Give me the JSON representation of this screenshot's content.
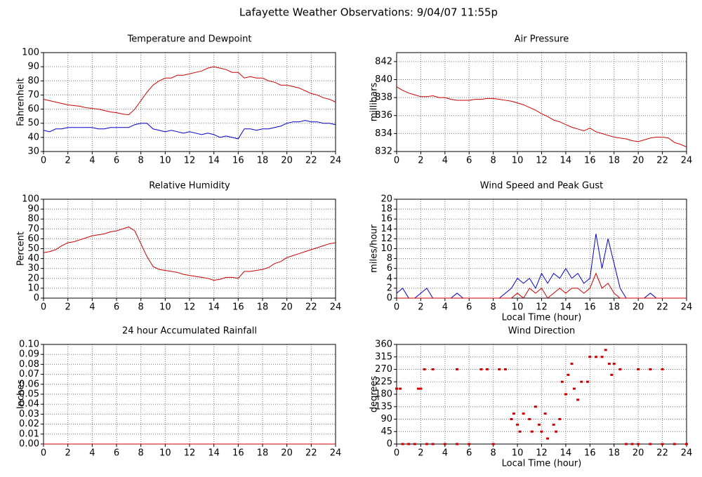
{
  "title": "Lafayette Weather Observations: 9/04/07 11:55p",
  "chart_data": [
    {
      "type": "line",
      "title": "Temperature and Dewpoint",
      "ylabel": "Fahrenheit",
      "x": [
        0,
        0.5,
        1,
        1.5,
        2,
        2.5,
        3,
        3.5,
        4,
        4.5,
        5,
        5.5,
        6,
        6.5,
        7,
        7.5,
        8,
        8.5,
        9,
        9.5,
        10,
        10.5,
        11,
        11.5,
        12,
        12.5,
        13,
        13.5,
        14,
        14.5,
        15,
        15.5,
        16,
        16.5,
        17,
        17.5,
        18,
        18.5,
        19,
        19.5,
        20,
        20.5,
        21,
        21.5,
        22,
        22.5,
        23,
        23.5,
        24
      ],
      "series": [
        {
          "color": "#cc0000",
          "values": [
            67,
            66,
            65,
            64,
            63,
            62.5,
            62,
            61,
            60.5,
            60,
            59,
            58,
            57.5,
            56.5,
            56,
            60,
            66,
            72,
            77,
            80,
            82,
            82,
            84,
            84,
            85,
            86,
            87,
            89,
            90,
            89,
            88,
            86,
            86,
            82,
            83,
            82,
            82,
            80,
            79,
            77,
            77,
            76,
            75,
            73,
            71,
            70,
            68,
            67,
            65
          ]
        },
        {
          "color": "#0000cc",
          "values": [
            45,
            44,
            46,
            46,
            47,
            47,
            47,
            47,
            47,
            46,
            46,
            47,
            47,
            47,
            47,
            49,
            50,
            50,
            46,
            45,
            44,
            45,
            44,
            43,
            44,
            43,
            42,
            43,
            42,
            40,
            41,
            40,
            39,
            46,
            46,
            45,
            46,
            46,
            47,
            48,
            50,
            51,
            51,
            52,
            51,
            51,
            50,
            50,
            49
          ]
        }
      ],
      "xlim": [
        0,
        24
      ],
      "xticks": [
        0,
        2,
        4,
        6,
        8,
        10,
        12,
        14,
        16,
        18,
        20,
        22,
        24
      ],
      "ylim": [
        30,
        100
      ],
      "yticks": [
        30,
        40,
        50,
        60,
        70,
        80,
        90,
        100
      ],
      "grid": true
    },
    {
      "type": "line",
      "title": "Air Pressure",
      "ylabel": "millibars",
      "x": [
        0,
        0.5,
        1,
        1.5,
        2,
        2.5,
        3,
        3.5,
        4,
        4.5,
        5,
        5.5,
        6,
        6.5,
        7,
        7.5,
        8,
        8.5,
        9,
        9.5,
        10,
        10.5,
        11,
        11.5,
        12,
        12.5,
        13,
        13.5,
        14,
        14.5,
        15,
        15.5,
        16,
        16.5,
        17,
        17.5,
        18,
        18.5,
        19,
        19.5,
        20,
        20.5,
        21,
        21.5,
        22,
        22.5,
        23,
        23.5,
        24
      ],
      "series": [
        {
          "color": "#cc0000",
          "values": [
            839.2,
            838.8,
            838.5,
            838.3,
            838.1,
            838.1,
            838.2,
            838,
            838,
            837.8,
            837.7,
            837.7,
            837.7,
            837.8,
            837.8,
            837.9,
            837.9,
            837.8,
            837.7,
            837.6,
            837.4,
            837.2,
            836.9,
            836.6,
            836.2,
            835.9,
            835.5,
            835.3,
            835,
            834.7,
            834.5,
            834.3,
            834.6,
            834.2,
            834,
            833.8,
            833.6,
            833.5,
            833.4,
            833.2,
            833.1,
            833.3,
            833.5,
            833.6,
            833.6,
            833.5,
            833,
            832.8,
            832.5
          ]
        }
      ],
      "xlim": [
        0,
        24
      ],
      "xticks": [
        0,
        2,
        4,
        6,
        8,
        10,
        12,
        14,
        16,
        18,
        20,
        22,
        24
      ],
      "ylim": [
        832,
        843
      ],
      "yticks": [
        832,
        834,
        836,
        838,
        840,
        842
      ],
      "grid": true
    },
    {
      "type": "line",
      "title": "Relative Humidity",
      "ylabel": "Percent",
      "x": [
        0,
        0.5,
        1,
        1.5,
        2,
        2.5,
        3,
        3.5,
        4,
        4.5,
        5,
        5.5,
        6,
        6.5,
        7,
        7.5,
        8,
        8.5,
        9,
        9.5,
        10,
        10.5,
        11,
        11.5,
        12,
        12.5,
        13,
        13.5,
        14,
        14.5,
        15,
        15.5,
        16,
        16.5,
        17,
        17.5,
        18,
        18.5,
        19,
        19.5,
        20,
        20.5,
        21,
        21.5,
        22,
        22.5,
        23,
        23.5,
        24
      ],
      "series": [
        {
          "color": "#cc0000",
          "values": [
            46,
            47,
            49,
            53,
            56,
            57,
            59,
            61,
            63,
            64,
            65,
            67,
            68,
            70,
            72,
            68,
            55,
            42,
            32,
            29,
            28,
            27,
            26,
            24,
            23,
            22,
            21,
            20,
            18,
            19,
            21,
            21,
            20,
            27,
            27,
            28,
            29,
            31,
            35,
            37,
            41,
            43,
            45,
            47,
            49,
            51,
            53,
            55,
            56
          ]
        }
      ],
      "xlim": [
        0,
        24
      ],
      "xticks": [
        0,
        2,
        4,
        6,
        8,
        10,
        12,
        14,
        16,
        18,
        20,
        22,
        24
      ],
      "ylim": [
        0,
        100
      ],
      "yticks": [
        0,
        10,
        20,
        30,
        40,
        50,
        60,
        70,
        80,
        90,
        100
      ],
      "grid": true
    },
    {
      "type": "line",
      "title": "Wind Speed and Peak Gust",
      "ylabel": "miles/hour",
      "xlabel": "Local Time (hour)",
      "x": [
        0,
        0.5,
        1,
        1.5,
        2,
        2.5,
        3,
        3.5,
        4,
        4.5,
        5,
        5.5,
        6,
        6.5,
        7,
        7.5,
        8,
        8.5,
        9,
        9.5,
        10,
        10.5,
        11,
        11.5,
        12,
        12.5,
        13,
        13.5,
        14,
        14.5,
        15,
        15.5,
        16,
        16.5,
        17,
        17.5,
        18,
        18.5,
        19,
        19.5,
        20,
        20.5,
        21,
        21.5,
        22,
        22.5,
        23,
        23.5,
        24
      ],
      "series": [
        {
          "color": "#0000cc",
          "values": [
            1,
            2,
            0,
            0,
            1,
            2,
            0,
            0,
            0,
            0,
            1,
            0,
            0,
            0,
            0,
            0,
            0,
            0,
            1,
            2,
            4,
            3,
            4,
            2,
            5,
            3,
            5,
            4,
            6,
            4,
            5,
            3,
            4,
            13,
            6,
            12,
            7,
            2,
            0,
            0,
            0,
            0,
            1,
            0,
            0,
            0,
            0,
            0,
            0
          ]
        },
        {
          "color": "#cc0000",
          "values": [
            0,
            0,
            0,
            0,
            0,
            0,
            0,
            0,
            0,
            0,
            0,
            0,
            0,
            0,
            0,
            0,
            0,
            0,
            0,
            0,
            1,
            0,
            2,
            1,
            2,
            0,
            1,
            2,
            1,
            2,
            2,
            1,
            2,
            5,
            2,
            3,
            1,
            0,
            0,
            0,
            0,
            0,
            0,
            0,
            0,
            0,
            0,
            0,
            0
          ]
        }
      ],
      "xlim": [
        0,
        24
      ],
      "xticks": [
        0,
        2,
        4,
        6,
        8,
        10,
        12,
        14,
        16,
        18,
        20,
        22,
        24
      ],
      "ylim": [
        0,
        20
      ],
      "yticks": [
        0,
        2,
        4,
        6,
        8,
        10,
        12,
        14,
        16,
        18,
        20
      ],
      "grid": true
    },
    {
      "type": "line",
      "title": "24 hour Accumulated Rainfall",
      "ylabel": "Inches",
      "x": [
        0,
        24
      ],
      "series": [
        {
          "color": "#cc0000",
          "values": [
            0,
            0
          ]
        }
      ],
      "xlim": [
        0,
        24
      ],
      "xticks": [
        0,
        2,
        4,
        6,
        8,
        10,
        12,
        14,
        16,
        18,
        20,
        22,
        24
      ],
      "ylim": [
        0,
        0.1
      ],
      "yticks": [
        {
          "value": 0,
          "label": "0.00"
        },
        0.01,
        0.02,
        0.03,
        0.04,
        0.05,
        0.06,
        0.07,
        0.08,
        0.09,
        {
          "value": 0.1,
          "label": "0.10"
        }
      ],
      "grid": true
    },
    {
      "type": "scatter",
      "title": "Wind Direction",
      "ylabel": "degrees",
      "xlabel": "Local Time (hour)",
      "x": [
        0,
        0.3,
        0.5,
        1,
        1.5,
        1.8,
        2,
        2.3,
        2.5,
        3,
        3,
        4,
        5,
        5,
        6,
        7,
        7.5,
        8,
        8.5,
        9,
        9.5,
        9.7,
        10,
        10.2,
        10.5,
        11,
        11.2,
        11.5,
        11.8,
        12,
        12.3,
        12.5,
        13,
        13.2,
        13.5,
        13.7,
        14,
        14.2,
        14.5,
        14.7,
        15,
        15.3,
        15.8,
        16,
        16.5,
        17,
        17.3,
        17.6,
        17.8,
        18,
        18.5,
        19,
        19.5,
        20,
        20,
        21,
        21,
        22,
        22,
        23,
        24
      ],
      "y": [
        200,
        200,
        0,
        0,
        0,
        200,
        200,
        270,
        0,
        270,
        0,
        0,
        270,
        0,
        0,
        270,
        270,
        0,
        270,
        270,
        90,
        110,
        70,
        45,
        110,
        90,
        45,
        135,
        70,
        45,
        110,
        20,
        70,
        45,
        90,
        225,
        180,
        250,
        290,
        200,
        160,
        225,
        225,
        315,
        315,
        315,
        340,
        290,
        250,
        290,
        270,
        0,
        0,
        270,
        0,
        270,
        0,
        270,
        0,
        0,
        0
      ],
      "color": "#cc0000",
      "xlim": [
        0,
        24
      ],
      "xticks": [
        0,
        2,
        4,
        6,
        8,
        10,
        12,
        14,
        16,
        18,
        20,
        22,
        24
      ],
      "ylim": [
        0,
        360
      ],
      "yticks": [
        0,
        45,
        90,
        135,
        180,
        225,
        270,
        315,
        360
      ],
      "grid": true
    }
  ]
}
